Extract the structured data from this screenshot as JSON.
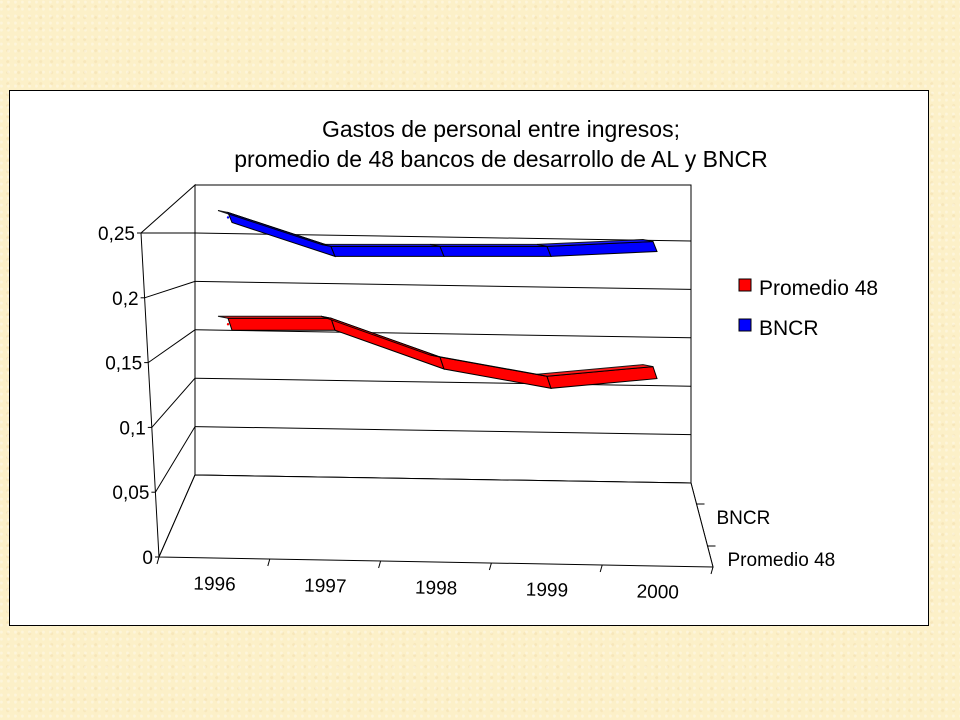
{
  "chart_data": {
    "type": "line",
    "title_lines": [
      "Gastos de personal entre ingresos;",
      "promedio de 48 bancos de desarrollo de AL y BNCR"
    ],
    "categories": [
      "1996",
      "1997",
      "1998",
      "1999",
      "2000"
    ],
    "series": [
      {
        "name": "Promedio 48",
        "values": [
          0.195,
          0.195,
          0.155,
          0.135,
          0.145
        ],
        "color": "#ff0000"
      },
      {
        "name": "BNCR",
        "values": [
          0.265,
          0.23,
          0.23,
          0.23,
          0.235
        ],
        "color": "#0000ff"
      }
    ],
    "y_ticks": [
      "0",
      "0,05",
      "0,1",
      "0,15",
      "0,2",
      "0,25"
    ],
    "ylim": [
      0,
      0.25
    ],
    "depth_labels": [
      "BNCR",
      "Promedio 48"
    ],
    "legend_position": "right",
    "grid": true,
    "three_d": true
  }
}
